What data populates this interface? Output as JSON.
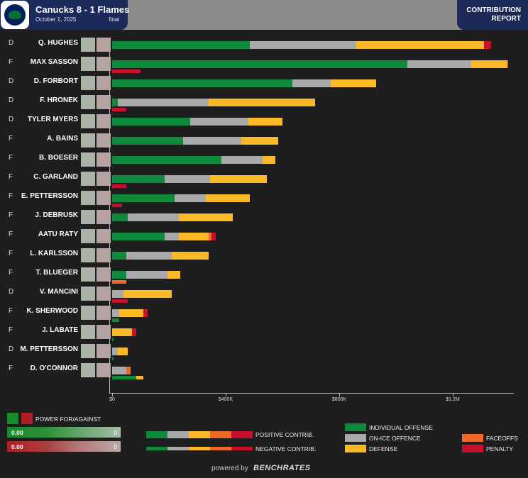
{
  "header": {
    "title": "Canucks 8 - 1 Flames",
    "date": "October 1, 2025",
    "status": "final",
    "report_line1": "CONTRIBUTION",
    "report_line2": "REPORT",
    "logo_icon": "canucks-orca-logo-icon"
  },
  "colors": {
    "individual_offense": "#0f8a3c",
    "on_ice_offence": "#a7a9ab",
    "defense": "#fbb827",
    "faceoffs": "#ef6a2a",
    "penalty": "#c8102e",
    "power_for": "#1a8a2a",
    "power_against": "#b01f24"
  },
  "chart_data": {
    "type": "bar",
    "stacked": true,
    "orientation": "horizontal",
    "x_tick_labels": [
      "$0",
      "$400K",
      "$800K",
      "$1.2M"
    ],
    "x_ticks": [
      0,
      400000,
      800000,
      1200000
    ],
    "xlim": [
      0,
      1400000
    ],
    "positive_order": [
      "Individual Offense",
      "On-Ice Offence",
      "Defense",
      "Faceoffs",
      "Penalty"
    ],
    "negative_order": [
      "Individual Offense",
      "On-Ice Offence",
      "Defense",
      "Faceoffs",
      "Penalty"
    ],
    "players": [
      {
        "pos": "D",
        "name": "Q. HUGHES",
        "positive": [
          485000,
          375000,
          450000,
          0,
          25000
        ],
        "negative": [
          0,
          0,
          0,
          0,
          0
        ]
      },
      {
        "pos": "F",
        "name": "MAX SASSON",
        "positive": [
          1040000,
          225000,
          125000,
          5000,
          0
        ],
        "negative": [
          0,
          0,
          0,
          0,
          100000
        ]
      },
      {
        "pos": "D",
        "name": "D. FORBORT",
        "positive": [
          635000,
          135000,
          160000,
          0,
          0
        ],
        "negative": [
          0,
          0,
          0,
          0,
          0
        ]
      },
      {
        "pos": "D",
        "name": "F. HRONEK",
        "positive": [
          20000,
          320000,
          375000,
          0,
          0
        ],
        "negative": [
          0,
          0,
          0,
          0,
          50000
        ]
      },
      {
        "pos": "D",
        "name": "TYLER MYERS",
        "positive": [
          275000,
          205000,
          120000,
          0,
          0
        ],
        "negative": [
          0,
          0,
          0,
          0,
          0
        ]
      },
      {
        "pos": "F",
        "name": "A. BAINS",
        "positive": [
          250000,
          205000,
          130000,
          0,
          0
        ],
        "negative": [
          0,
          0,
          0,
          0,
          0
        ]
      },
      {
        "pos": "F",
        "name": "B. BOESER",
        "positive": [
          385000,
          145000,
          45000,
          0,
          0
        ],
        "negative": [
          0,
          0,
          0,
          0,
          0
        ]
      },
      {
        "pos": "F",
        "name": "C. GARLAND",
        "positive": [
          185000,
          160000,
          200000,
          0,
          0
        ],
        "negative": [
          0,
          0,
          0,
          0,
          50000
        ]
      },
      {
        "pos": "F",
        "name": "E. PETTERSSON",
        "positive": [
          220000,
          110000,
          155000,
          0,
          0
        ],
        "negative": [
          0,
          0,
          0,
          0,
          35000
        ]
      },
      {
        "pos": "F",
        "name": "J. DEBRUSK",
        "positive": [
          55000,
          180000,
          190000,
          0,
          0
        ],
        "negative": [
          0,
          0,
          0,
          0,
          0
        ]
      },
      {
        "pos": "F",
        "name": "AATU RATY",
        "positive": [
          185000,
          50000,
          105000,
          10000,
          15000
        ],
        "negative": [
          0,
          0,
          0,
          0,
          0
        ]
      },
      {
        "pos": "F",
        "name": "L. KARLSSON",
        "positive": [
          50000,
          160000,
          130000,
          0,
          0
        ],
        "negative": [
          0,
          0,
          0,
          0,
          0
        ]
      },
      {
        "pos": "F",
        "name": "T. BLUEGER",
        "positive": [
          50000,
          145000,
          45000,
          0,
          0
        ],
        "negative": [
          0,
          0,
          0,
          50000,
          0
        ]
      },
      {
        "pos": "D",
        "name": "V. MANCINI",
        "positive": [
          0,
          40000,
          170000,
          0,
          0
        ],
        "negative": [
          0,
          0,
          0,
          0,
          55000
        ]
      },
      {
        "pos": "F",
        "name": "K. SHERWOOD",
        "positive": [
          0,
          25000,
          85000,
          0,
          15000
        ],
        "negative": [
          25000,
          0,
          0,
          0,
          0
        ]
      },
      {
        "pos": "F",
        "name": "J. LABATE",
        "positive": [
          0,
          0,
          70000,
          0,
          15000
        ],
        "negative": [
          5000,
          0,
          0,
          0,
          0
        ]
      },
      {
        "pos": "D",
        "name": "M. PETTERSSON",
        "positive": [
          0,
          20000,
          35000,
          0,
          0
        ],
        "negative": [
          5000,
          0,
          0,
          0,
          0
        ]
      },
      {
        "pos": "F",
        "name": "D. O'CONNOR",
        "positive": [
          0,
          50000,
          0,
          15000,
          0
        ],
        "negative": [
          85000,
          0,
          25000,
          0,
          0
        ]
      }
    ]
  },
  "legend": {
    "power_title": "POWER FOR/AGAINST",
    "power_for_value": "0.00",
    "power_for_count": "0",
    "power_against_value": "0.00",
    "power_against_count": "0",
    "positive_label": "POSITIVE CONTRIB.",
    "negative_label": "NEGATIVE CONTRIB.",
    "individual_offense": "INDIVIDUAL OFFENSE",
    "on_ice_offence": "ON-ICE OFFENCE",
    "defense": "DEFENSE",
    "faceoffs": "FACEOFFS",
    "penalty": "PENALTY"
  },
  "footer": {
    "powered_by": "powered by",
    "brand": "BENCHRATES"
  }
}
